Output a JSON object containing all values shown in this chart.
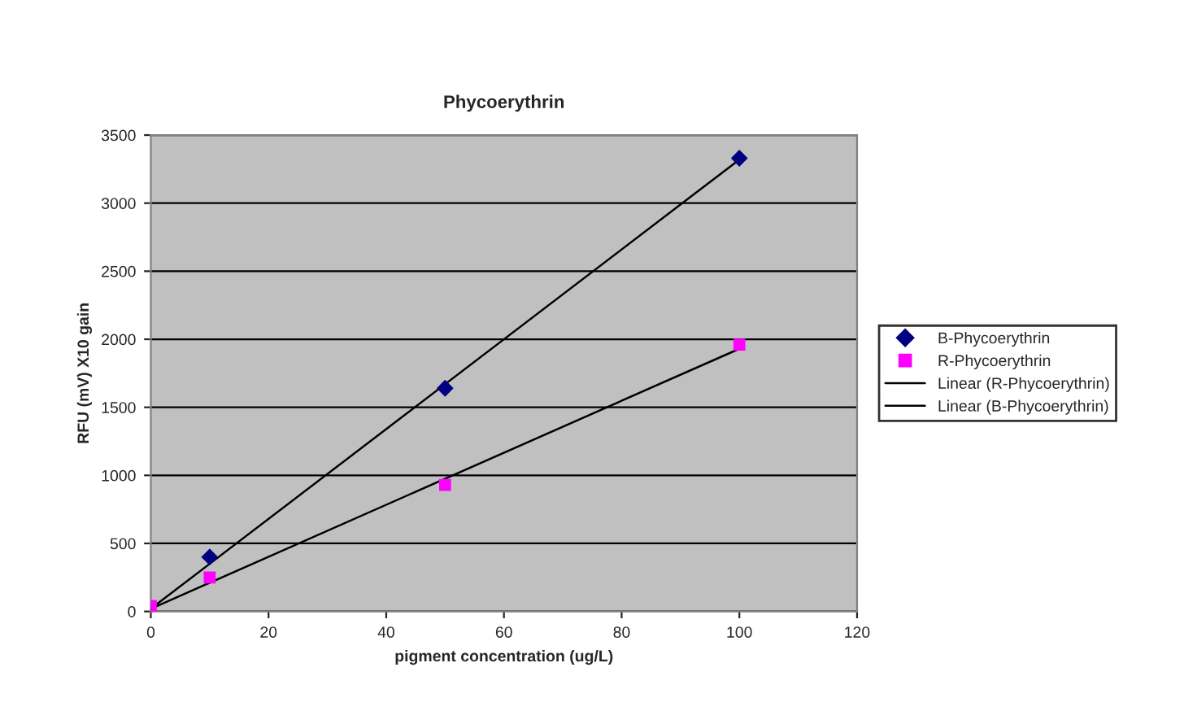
{
  "chart_data": {
    "type": "scatter",
    "title": "Phycoerythrin",
    "xlabel": "pigment concentration (ug/L)",
    "ylabel": "RFU (mV) X10 gain",
    "series": [
      {
        "name": "B-Phycoerythrin",
        "color": "#000080",
        "marker": "diamond",
        "x": [
          10,
          50,
          100
        ],
        "values": [
          400,
          1640,
          3330
        ]
      },
      {
        "name": "R-Phycoerythrin",
        "color": "#ff00ff",
        "marker": "square",
        "x": [
          0,
          10,
          50,
          100
        ],
        "values": [
          40,
          250,
          930,
          1960
        ]
      },
      {
        "name": "Linear (R-Phycoerythrin)",
        "type": "line",
        "color": "#000000",
        "marker": "none",
        "line_style": "solid",
        "x": [
          0,
          100
        ],
        "values": [
          20,
          1930
        ]
      },
      {
        "name": "Linear (B-Phycoerythrin)",
        "type": "line",
        "color": "#000000",
        "marker": "none",
        "line_style": "solid",
        "x": [
          0,
          100
        ],
        "values": [
          20,
          3320
        ]
      }
    ],
    "xlim": [
      0,
      120
    ],
    "xticks": [
      0,
      20,
      40,
      60,
      80,
      100,
      120
    ],
    "ylim": [
      0,
      3500
    ],
    "yticks": [
      0,
      500,
      1000,
      1500,
      2000,
      2500,
      3000,
      3500
    ],
    "grid": "y",
    "legend": "right"
  }
}
